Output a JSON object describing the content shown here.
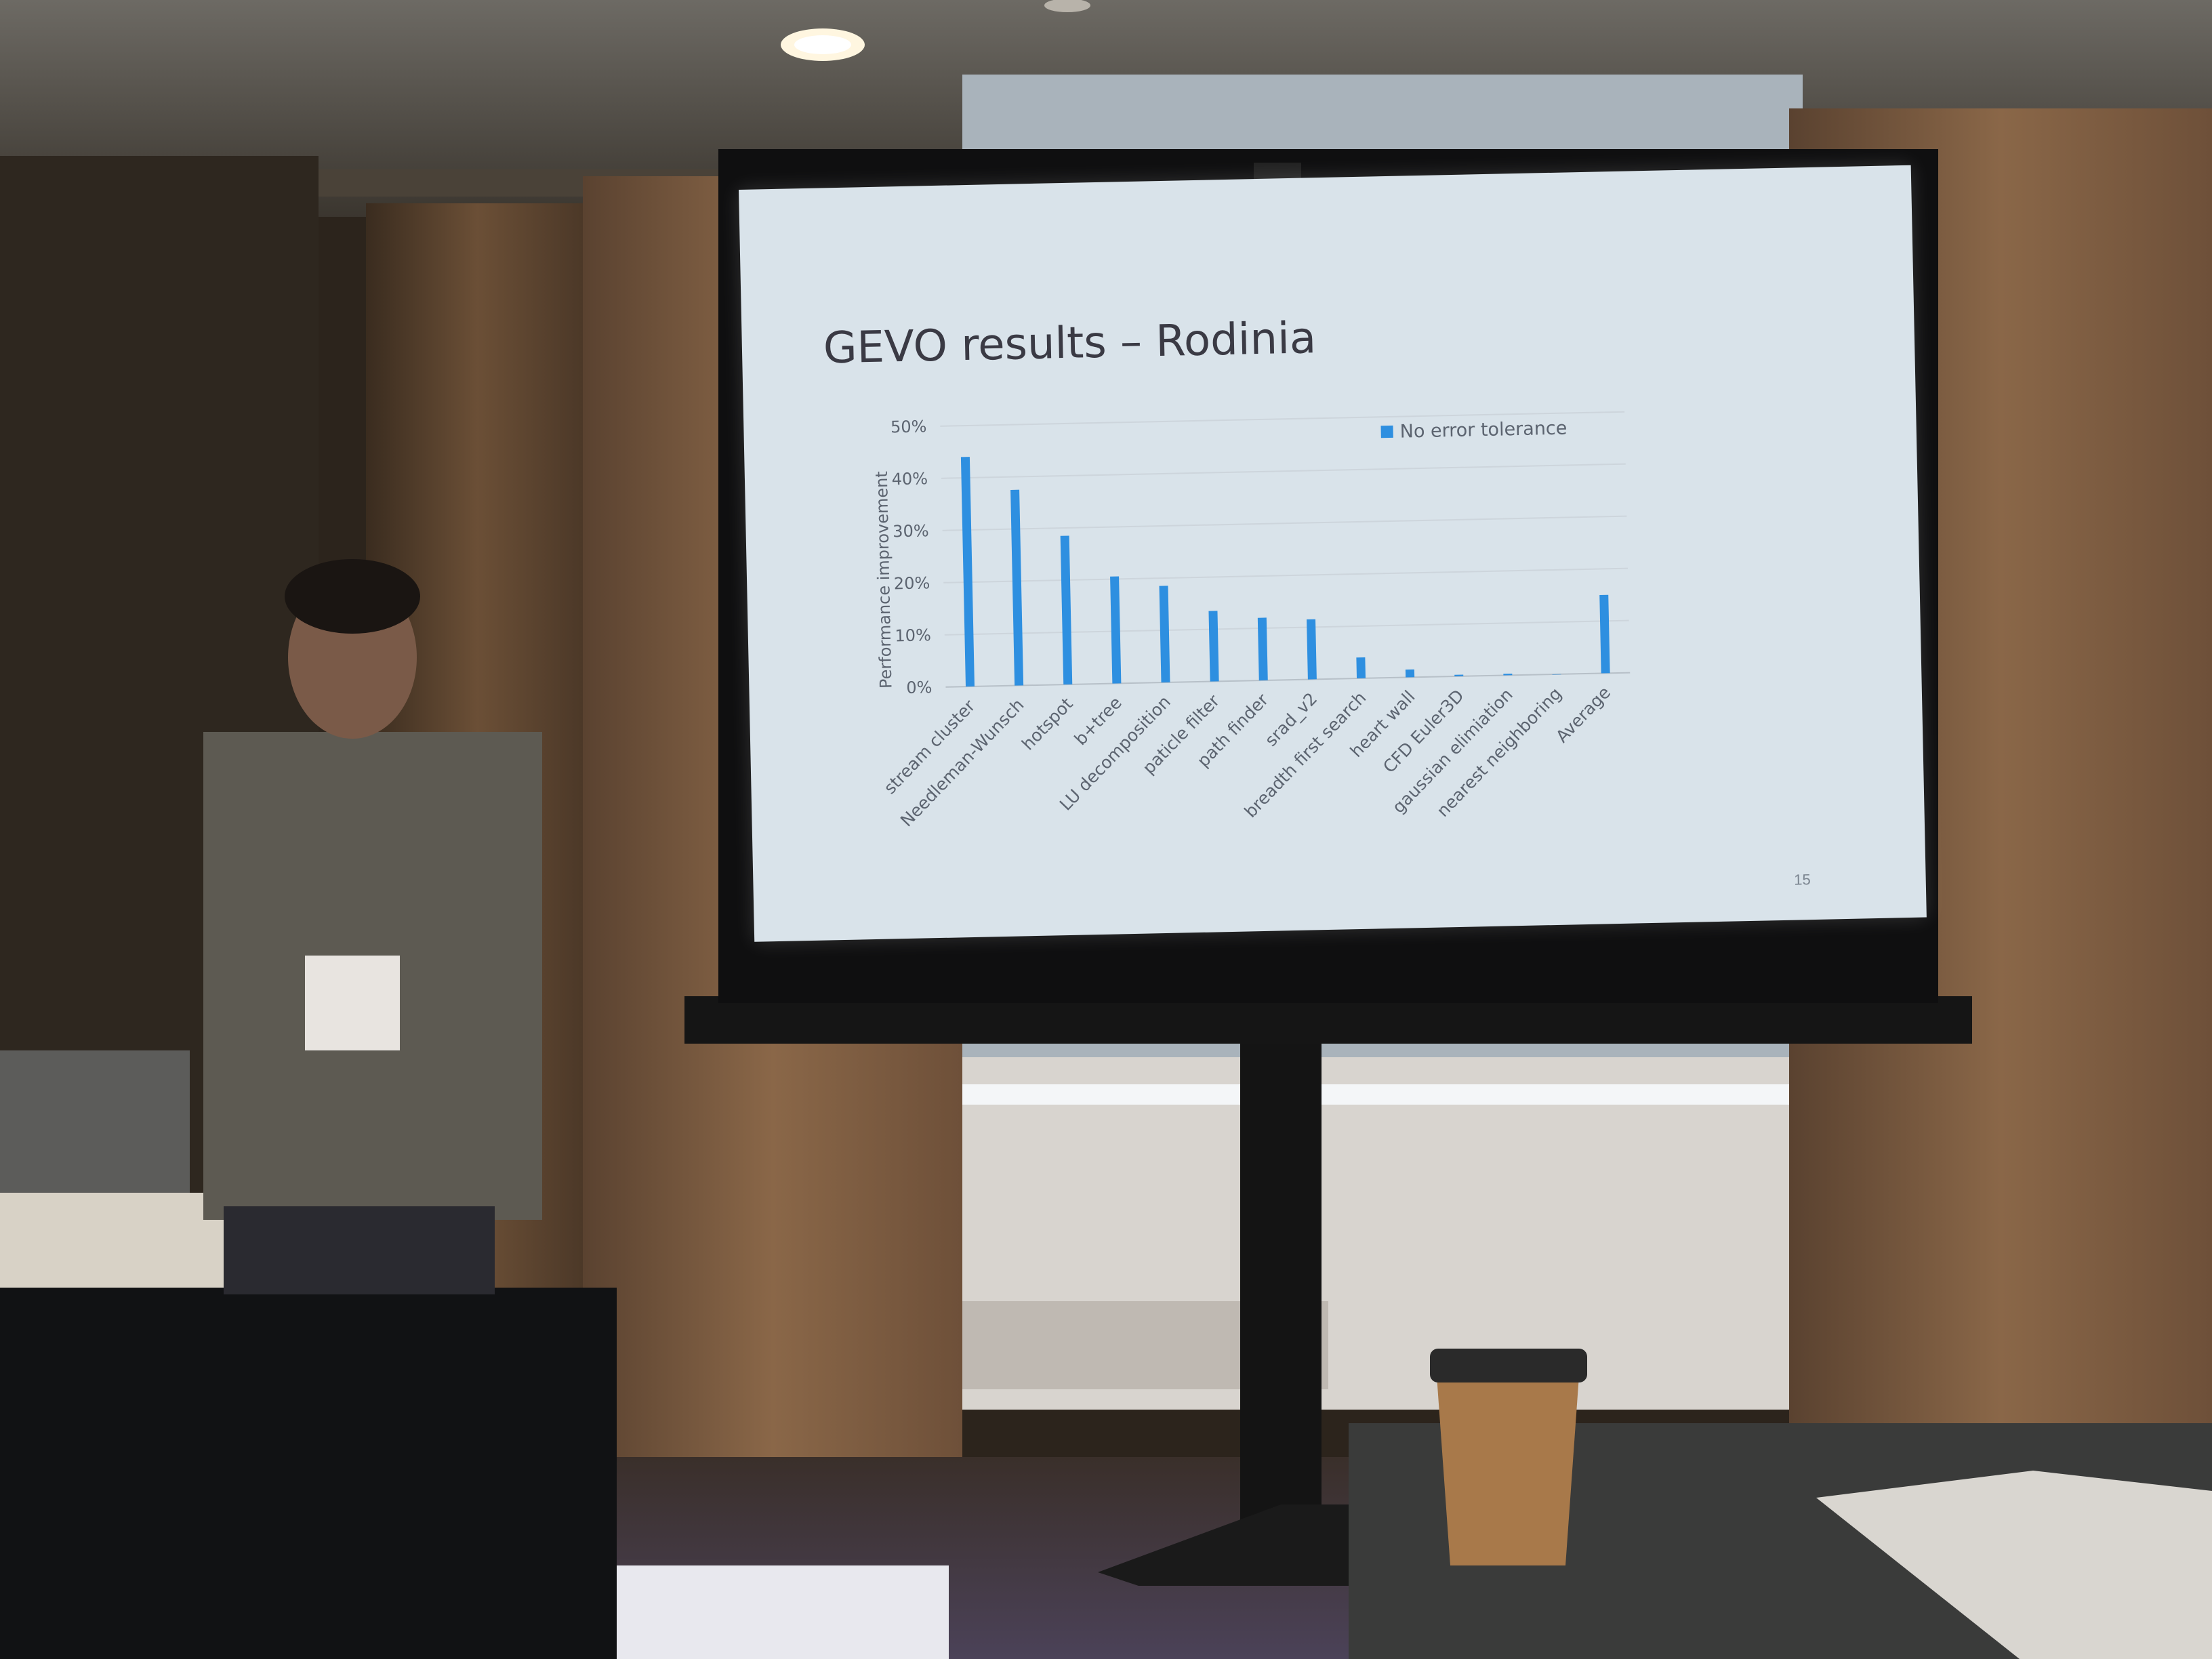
{
  "slide": {
    "title": "GEVO results – Rodinia",
    "page_number": "15"
  },
  "chart_data": {
    "type": "bar",
    "title": "",
    "xlabel": "",
    "ylabel": "Performance improvement",
    "legend_position": "top-right",
    "legend": [
      "No error tolerance"
    ],
    "grid": true,
    "ylim": [
      0,
      50
    ],
    "y_tick_labels": [
      "0%",
      "10%",
      "20%",
      "30%",
      "40%",
      "50%"
    ],
    "categories": [
      "stream cluster",
      "Needleman-Wunsch",
      "hotspot",
      "b+tree",
      "LU decomposition",
      "paticle filter",
      "path finder",
      "srad_v2",
      "breadth first search",
      "heart wall",
      "CFD Euler3D",
      "gaussian elimiation",
      "nearest neighboring",
      "Average"
    ],
    "series": [
      {
        "name": "No error tolerance",
        "color": "#2e8fe0",
        "values": [
          44,
          37.5,
          28.5,
          20.5,
          18.5,
          13.5,
          12,
          11.5,
          4,
          1.5,
          0.3,
          0.3,
          0,
          15
        ]
      }
    ]
  }
}
